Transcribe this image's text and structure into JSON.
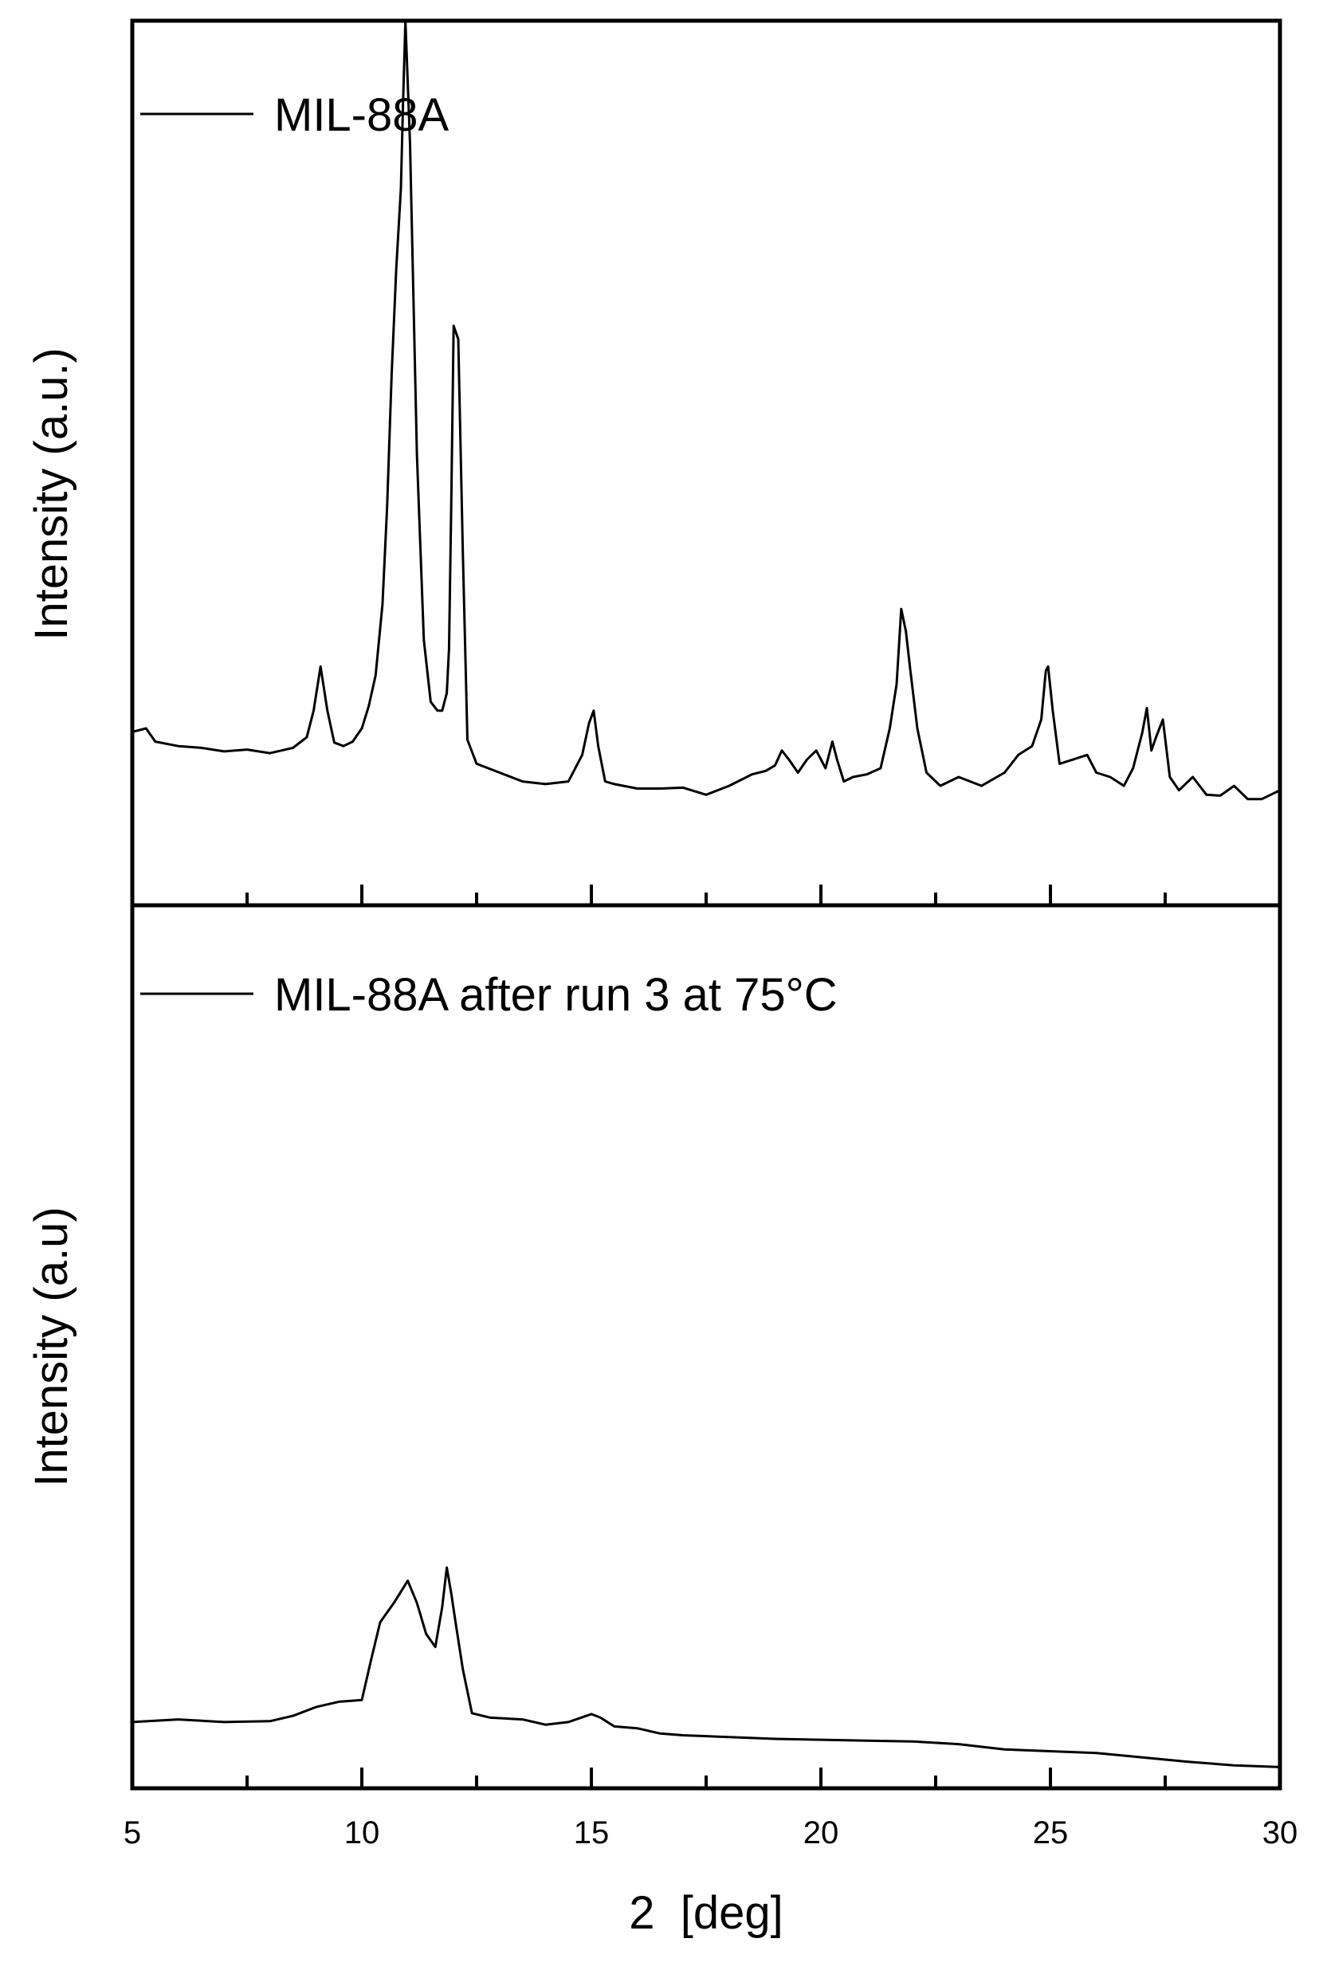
{
  "chart_data": [
    {
      "type": "line",
      "panel": "top",
      "ylabel": "Intensity (a.u.)",
      "xlim": [
        5,
        30
      ],
      "ylim": [
        0,
        100
      ],
      "grid": false,
      "legend_position": "top-left",
      "series": [
        {
          "name": "MIL-88A",
          "x": [
            5.0,
            5.3,
            5.5,
            6.0,
            6.5,
            7.0,
            7.5,
            8.0,
            8.5,
            8.8,
            8.95,
            9.1,
            9.25,
            9.4,
            9.6,
            9.8,
            10.0,
            10.15,
            10.3,
            10.45,
            10.55,
            10.65,
            10.75,
            10.85,
            10.9,
            10.95,
            11.05,
            11.2,
            11.35,
            11.5,
            11.65,
            11.75,
            11.85,
            11.9,
            11.95,
            12.0,
            12.1,
            12.2,
            12.3,
            12.5,
            13.0,
            13.5,
            14.0,
            14.5,
            14.8,
            14.95,
            15.05,
            15.15,
            15.3,
            15.5,
            16.0,
            16.5,
            17.0,
            17.5,
            18.0,
            18.5,
            18.8,
            19.0,
            19.15,
            19.3,
            19.5,
            19.7,
            19.9,
            20.1,
            20.25,
            20.35,
            20.5,
            20.7,
            21.0,
            21.3,
            21.5,
            21.65,
            21.75,
            21.85,
            21.95,
            22.1,
            22.3,
            22.6,
            23.0,
            23.5,
            24.0,
            24.3,
            24.6,
            24.8,
            24.9,
            24.95,
            25.05,
            25.2,
            25.5,
            25.8,
            26.0,
            26.3,
            26.6,
            26.8,
            27.0,
            27.1,
            27.2,
            27.3,
            27.45,
            27.6,
            27.8,
            28.1,
            28.4,
            28.7,
            29.0,
            29.3,
            29.6,
            30.0
          ],
          "y": [
            19.6,
            20.0,
            18.5,
            18.0,
            17.8,
            17.4,
            17.6,
            17.2,
            17.8,
            19.0,
            22.0,
            27.0,
            22.0,
            18.4,
            18.0,
            18.5,
            20.0,
            22.5,
            26.0,
            34.0,
            45.0,
            60.0,
            72.0,
            81.0,
            91.0,
            100.0,
            86.0,
            51.0,
            30.0,
            23.0,
            22.0,
            22.0,
            24.0,
            29.0,
            46.0,
            65.5,
            64.0,
            40.0,
            18.7,
            16.0,
            15.0,
            14.0,
            13.7,
            14.0,
            17.0,
            20.6,
            22.0,
            18.0,
            14.0,
            13.7,
            13.2,
            13.2,
            13.3,
            12.5,
            13.5,
            14.8,
            15.2,
            15.8,
            17.5,
            16.5,
            15.0,
            16.5,
            17.5,
            15.5,
            18.5,
            16.5,
            14.0,
            14.5,
            14.8,
            15.5,
            20.0,
            25.0,
            33.5,
            31.0,
            26.5,
            20.0,
            15.0,
            13.5,
            14.5,
            13.5,
            15.0,
            17.0,
            18.0,
            21.0,
            26.5,
            27.0,
            22.0,
            16.0,
            16.5,
            17.0,
            15.0,
            14.5,
            13.5,
            15.5,
            19.5,
            22.3,
            17.5,
            19.0,
            21.0,
            14.5,
            13.0,
            14.5,
            12.5,
            12.4,
            13.5,
            12.0,
            12.0,
            13.0
          ]
        }
      ]
    },
    {
      "type": "line",
      "panel": "bottom",
      "xlabel": "2  [deg]",
      "ylabel": "Intensity (a.u)",
      "xlim": [
        5,
        30
      ],
      "xticks": [
        5,
        10,
        15,
        20,
        25,
        30
      ],
      "ylim": [
        0,
        100
      ],
      "grid": false,
      "legend_position": "top-left",
      "series": [
        {
          "name": "MIL-88A after run 3 at 75°C",
          "x": [
            5.0,
            6.0,
            7.0,
            8.0,
            8.5,
            9.0,
            9.5,
            10.0,
            10.2,
            10.4,
            10.7,
            11.0,
            11.2,
            11.4,
            11.6,
            11.75,
            11.85,
            11.95,
            12.05,
            12.2,
            12.4,
            12.8,
            13.5,
            14.0,
            14.5,
            15.0,
            15.2,
            15.5,
            16.0,
            16.5,
            17.0,
            18.0,
            19.0,
            20.0,
            21.0,
            22.0,
            23.0,
            24.0,
            25.0,
            26.0,
            27.0,
            28.0,
            29.0,
            30.0
          ],
          "y": [
            7.5,
            7.8,
            7.5,
            7.6,
            8.2,
            9.2,
            9.8,
            10.0,
            14.5,
            18.8,
            21.0,
            23.5,
            21.0,
            17.5,
            16.0,
            20.5,
            25.0,
            22.0,
            18.5,
            13.5,
            8.5,
            8.0,
            7.8,
            7.2,
            7.5,
            8.4,
            8.0,
            7.0,
            6.8,
            6.2,
            6.0,
            5.8,
            5.6,
            5.5,
            5.4,
            5.3,
            5.0,
            4.4,
            4.2,
            4.0,
            3.5,
            3.0,
            2.6,
            2.4
          ]
        }
      ]
    }
  ]
}
